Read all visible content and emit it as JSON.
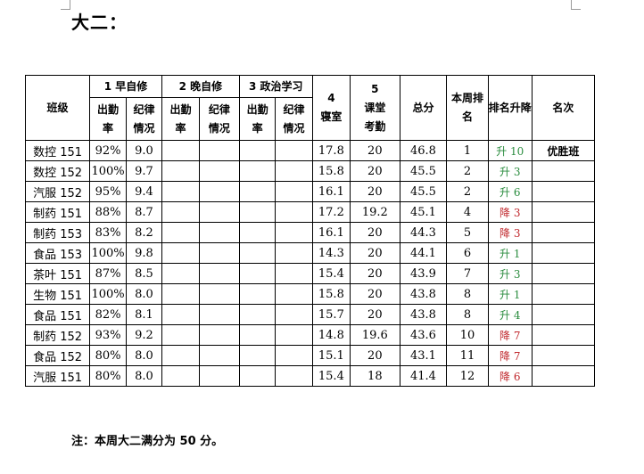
{
  "heading": "大二：",
  "table": {
    "col_class": "班级",
    "group_morning": "1 早自修",
    "group_evening": "2 晚自修",
    "group_politics": "3 政治学习",
    "col_dorm": "4\n寝室",
    "col_classroom": "5\n课堂\n考勤",
    "col_total": "总分",
    "col_rank": "本周排\n名",
    "col_change": "排名升降",
    "col_honor": "名次",
    "sub_attendance": "出勤\n率",
    "sub_discipline": "纪律\n情况",
    "rows": [
      {
        "cls": "数控 151",
        "att": "92%",
        "disc": "9.0",
        "dorm": "17.8",
        "classroom": "20",
        "total": "46.8",
        "rank": "1",
        "change": "升 10",
        "dir": "up",
        "honor": "优胜班"
      },
      {
        "cls": "数控 152",
        "att": "100%",
        "disc": "9.7",
        "dorm": "15.8",
        "classroom": "20",
        "total": "45.5",
        "rank": "2",
        "change": "升 3",
        "dir": "up",
        "honor": ""
      },
      {
        "cls": "汽服 152",
        "att": "95%",
        "disc": "9.4",
        "dorm": "16.1",
        "classroom": "20",
        "total": "45.5",
        "rank": "2",
        "change": "升 6",
        "dir": "up",
        "honor": ""
      },
      {
        "cls": "制药 151",
        "att": "88%",
        "disc": "8.7",
        "dorm": "17.2",
        "classroom": "19.2",
        "total": "45.1",
        "rank": "4",
        "change": "降 3",
        "dir": "down",
        "honor": ""
      },
      {
        "cls": "制药 153",
        "att": "83%",
        "disc": "8.2",
        "dorm": "16.1",
        "classroom": "20",
        "total": "44.3",
        "rank": "5",
        "change": "降 3",
        "dir": "down",
        "honor": ""
      },
      {
        "cls": "食品 153",
        "att": "100%",
        "disc": "9.8",
        "dorm": "14.3",
        "classroom": "20",
        "total": "44.1",
        "rank": "6",
        "change": "升 1",
        "dir": "up",
        "honor": ""
      },
      {
        "cls": "茶叶 151",
        "att": "87%",
        "disc": "8.5",
        "dorm": "15.4",
        "classroom": "20",
        "total": "43.9",
        "rank": "7",
        "change": "升 3",
        "dir": "up",
        "honor": ""
      },
      {
        "cls": "生物 151",
        "att": "100%",
        "disc": "8.0",
        "dorm": "15.8",
        "classroom": "20",
        "total": "43.8",
        "rank": "8",
        "change": "升 1",
        "dir": "up",
        "honor": ""
      },
      {
        "cls": "食品 151",
        "att": "82%",
        "disc": "8.1",
        "dorm": "15.7",
        "classroom": "20",
        "total": "43.8",
        "rank": "8",
        "change": "升 4",
        "dir": "up",
        "honor": ""
      },
      {
        "cls": "制药 152",
        "att": "93%",
        "disc": "9.2",
        "dorm": "14.8",
        "classroom": "19.6",
        "total": "43.6",
        "rank": "10",
        "change": "降 7",
        "dir": "down",
        "honor": ""
      },
      {
        "cls": "食品 152",
        "att": "80%",
        "disc": "8.0",
        "dorm": "15.1",
        "classroom": "20",
        "total": "43.1",
        "rank": "11",
        "change": "降 7",
        "dir": "down",
        "honor": ""
      },
      {
        "cls": "汽服 151",
        "att": "80%",
        "disc": "8.0",
        "dorm": "15.4",
        "classroom": "18",
        "total": "41.4",
        "rank": "12",
        "change": "降 6",
        "dir": "down",
        "honor": ""
      }
    ]
  },
  "note": "注：本周大二满分为 50 分。",
  "colors": {
    "up": "#2a8c3e",
    "down": "#c0282d"
  }
}
